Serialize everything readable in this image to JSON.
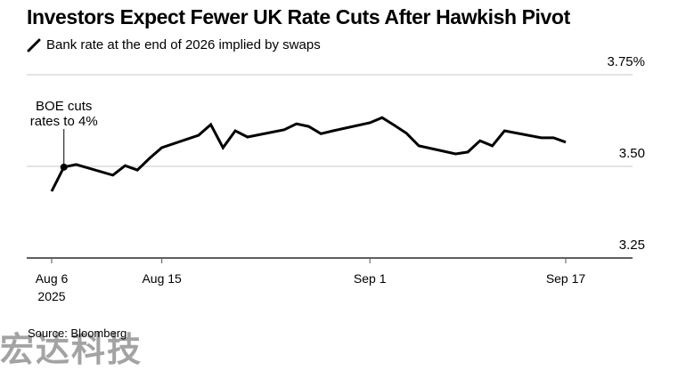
{
  "chart_data": {
    "type": "line",
    "title": "Investors Expect Fewer UK Rate Cuts After Hawkish Pivot",
    "legend": [
      {
        "name": "Bank rate at the end of 2026 implied by swaps",
        "color": "#000000"
      }
    ],
    "ylabel": "",
    "xlabel": "",
    "ylim": [
      3.25,
      3.75
    ],
    "y_ticks": [
      {
        "value": 3.75,
        "label": "3.75%"
      },
      {
        "value": 3.5,
        "label": "3.50"
      },
      {
        "value": 3.25,
        "label": "3.25"
      }
    ],
    "x_range": [
      "2025-08-06",
      "2025-09-17"
    ],
    "x_ticks": [
      {
        "date": "2025-08-06",
        "label": "Aug 6",
        "sublabel": "2025"
      },
      {
        "date": "2025-08-15",
        "label": "Aug 15",
        "sublabel": ""
      },
      {
        "date": "2025-09-01",
        "label": "Sep 1",
        "sublabel": ""
      },
      {
        "date": "2025-09-17",
        "label": "Sep 17",
        "sublabel": ""
      }
    ],
    "grid": true,
    "series": [
      {
        "name": "Bank rate at the end of 2026 implied by swaps",
        "color": "#000000",
        "points": [
          [
            "2025-08-06",
            3.432
          ],
          [
            "2025-08-07",
            3.498
          ],
          [
            "2025-08-08",
            3.505
          ],
          [
            "2025-08-11",
            3.476
          ],
          [
            "2025-08-12",
            3.502
          ],
          [
            "2025-08-13",
            3.49
          ],
          [
            "2025-08-14",
            3.522
          ],
          [
            "2025-08-15",
            3.551
          ],
          [
            "2025-08-18",
            3.585
          ],
          [
            "2025-08-19",
            3.614
          ],
          [
            "2025-08-20",
            3.551
          ],
          [
            "2025-08-21",
            3.597
          ],
          [
            "2025-08-22",
            3.58
          ],
          [
            "2025-08-25",
            3.6
          ],
          [
            "2025-08-26",
            3.616
          ],
          [
            "2025-08-27",
            3.609
          ],
          [
            "2025-08-28",
            3.589
          ],
          [
            "2025-08-29",
            3.597
          ],
          [
            "2025-09-01",
            3.619
          ],
          [
            "2025-09-02",
            3.633
          ],
          [
            "2025-09-03",
            3.612
          ],
          [
            "2025-09-04",
            3.59
          ],
          [
            "2025-09-05",
            3.556
          ],
          [
            "2025-09-08",
            3.534
          ],
          [
            "2025-09-09",
            3.539
          ],
          [
            "2025-09-10",
            3.57
          ],
          [
            "2025-09-11",
            3.556
          ],
          [
            "2025-09-12",
            3.597
          ],
          [
            "2025-09-15",
            3.578
          ],
          [
            "2025-09-16",
            3.578
          ],
          [
            "2025-09-17",
            3.566
          ]
        ]
      }
    ],
    "annotations": [
      {
        "date": "2025-08-07",
        "value": 3.498,
        "lines": [
          "BOE cuts",
          "rates to 4%"
        ]
      }
    ]
  },
  "source": "Source: Bloomberg",
  "watermark": "宏达科技"
}
